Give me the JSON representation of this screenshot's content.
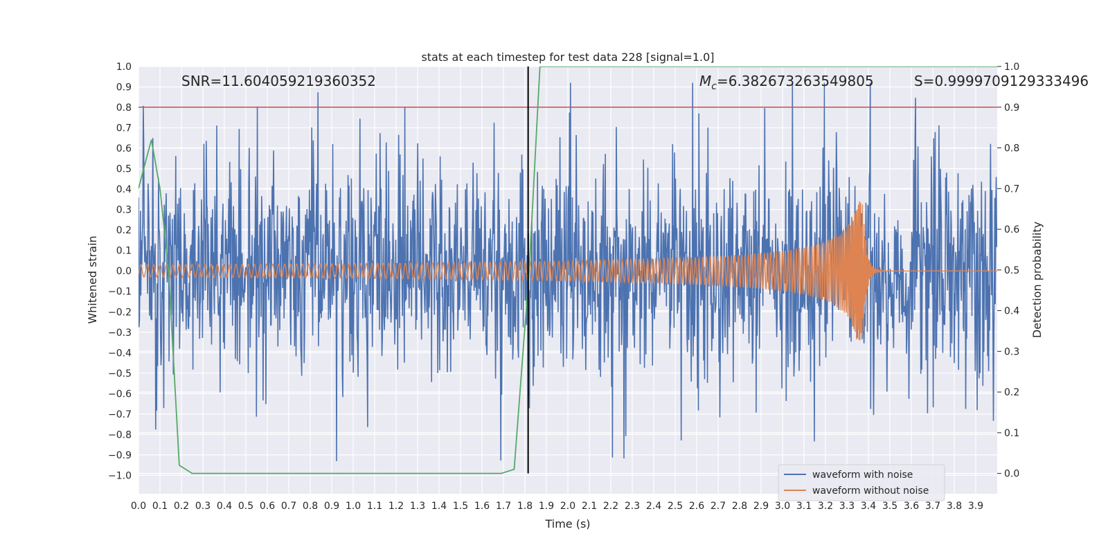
{
  "chart_data": {
    "type": "line",
    "title": "stats at each timestep for test data 228 [signal=1.0]",
    "xlabel": "Time (s)",
    "ylabel": "Whitened strain",
    "ylabel_right": "Detection probability",
    "xlim": [
      0.0,
      4.0
    ],
    "ylim": [
      -1.09,
      1.0
    ],
    "ylim_right": [
      -0.05,
      1.0
    ],
    "x_ticks": [
      "0.0",
      "0.1",
      "0.2",
      "0.3",
      "0.4",
      "0.5",
      "0.6",
      "0.7",
      "0.8",
      "0.9",
      "1.0",
      "1.1",
      "1.2",
      "1.3",
      "1.4",
      "1.5",
      "1.6",
      "1.7",
      "1.8",
      "1.9",
      "2.0",
      "2.1",
      "2.2",
      "2.3",
      "2.4",
      "2.5",
      "2.6",
      "2.7",
      "2.8",
      "2.9",
      "3.0",
      "3.1",
      "3.2",
      "3.3",
      "3.4",
      "3.5",
      "3.6",
      "3.7",
      "3.8",
      "3.9"
    ],
    "y_ticks": [
      "1.0",
      "0.9",
      "0.8",
      "0.7",
      "0.6",
      "0.5",
      "0.4",
      "0.3",
      "0.2",
      "0.1",
      "0.0",
      "−0.1",
      "−0.2",
      "−0.3",
      "−0.4",
      "−0.5",
      "−0.6",
      "−0.7",
      "−0.8",
      "−0.9",
      "−1.0"
    ],
    "y_right_ticks": [
      "1.0",
      "0.9",
      "0.8",
      "0.7",
      "0.6",
      "0.5",
      "0.4",
      "0.3",
      "0.2",
      "0.1",
      "0.0"
    ],
    "annotations": {
      "snr": "SNR=11.604059219360352",
      "mc_symbol": "M",
      "mc_sub": "c",
      "mc_value": "=6.382673263549805",
      "s": "S=0.9999709129333496"
    },
    "legend": [
      "waveform with noise",
      "waveform without noise"
    ],
    "series": [
      {
        "name": "waveform with noise",
        "color": "#4c72b0",
        "kind": "noise",
        "amplitude": 0.55,
        "n_points": 1800
      },
      {
        "name": "waveform without noise",
        "color": "#dd8452",
        "kind": "chirp",
        "merger_time": 3.375,
        "base_amplitude": 0.03,
        "peak_amplitude": 0.34
      },
      {
        "name": "detection probability",
        "color": "#55a868",
        "axis": "right",
        "x": [
          0.0,
          0.06,
          0.1,
          0.14,
          0.19,
          0.25,
          1.6,
          1.69,
          1.75,
          1.82,
          1.87,
          4.0
        ],
        "values": [
          0.7,
          0.82,
          0.7,
          0.5,
          0.02,
          0.0,
          0.0,
          0.0,
          0.01,
          0.5,
          1.0,
          1.0
        ]
      }
    ],
    "threshold": {
      "value": 0.9,
      "axis": "right",
      "color": "#c44e52"
    },
    "vline": {
      "x": 1.815,
      "color": "#000000"
    }
  }
}
